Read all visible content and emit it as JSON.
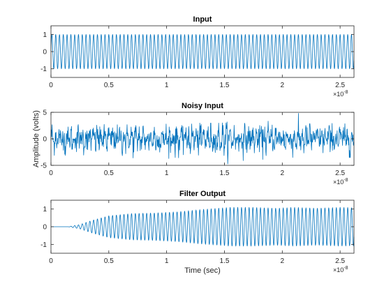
{
  "figure": {
    "ylabel": "Amplitude (volts)",
    "xlabel": "Time (sec)",
    "line_color": "#0072bd",
    "axis_color": "#262626",
    "exponent_label": "×10",
    "exponent_power": "-8"
  },
  "chart_data": [
    {
      "type": "line",
      "title": "Input",
      "xlabel": "",
      "ylabel": "",
      "xlim": [
        0,
        2.62e-08
      ],
      "ylim": [
        -1.5,
        1.5
      ],
      "x_ticks": [
        0,
        0.5,
        1,
        1.5,
        2,
        2.5
      ],
      "y_ticks": [
        -1,
        0,
        1
      ],
      "series": [
        {
          "kind": "sine",
          "amplitude": 1.0,
          "frequency_hz": 3050000000.0,
          "t_start": 0,
          "t_end": 2.62e-08
        }
      ]
    },
    {
      "type": "line",
      "title": "Noisy Input",
      "xlabel": "",
      "ylabel": "Amplitude (volts)",
      "xlim": [
        0,
        2.62e-08
      ],
      "ylim": [
        -5,
        5
      ],
      "x_ticks": [
        0,
        0.5,
        1,
        1.5,
        2,
        2.5
      ],
      "y_ticks": [
        -5,
        0,
        5
      ],
      "series": [
        {
          "kind": "noisy_sine",
          "amplitude": 1.0,
          "noise_std": 1.2,
          "frequency_hz": 3050000000.0,
          "t_start": 0,
          "t_end": 2.62e-08
        }
      ]
    },
    {
      "type": "line",
      "title": "Filter Output",
      "xlabel": "Time (sec)",
      "ylabel": "",
      "xlim": [
        0,
        2.62e-08
      ],
      "ylim": [
        -1.5,
        1.5
      ],
      "x_ticks": [
        0,
        0.5,
        1,
        1.5,
        2,
        2.5
      ],
      "y_ticks": [
        -1,
        0,
        1
      ],
      "series": [
        {
          "kind": "envelope_sine",
          "frequency_hz": 3050000000.0,
          "t_start": 0,
          "t_end": 2.62e-08,
          "envelope": [
            [
              0,
              0
            ],
            [
              1.5e-09,
              0.0
            ],
            [
              2.5e-09,
              0.12
            ],
            [
              3.5e-09,
              0.35
            ],
            [
              5e-09,
              0.62
            ],
            [
              7e-09,
              0.75
            ],
            [
              9e-09,
              0.78
            ],
            [
              1.1e-08,
              0.85
            ],
            [
              1.3e-08,
              0.98
            ],
            [
              1.55e-08,
              1.1
            ],
            [
              1.75e-08,
              1.1
            ],
            [
              1.95e-08,
              1.05
            ],
            [
              2.1e-08,
              1.1
            ],
            [
              2.3e-08,
              1.05
            ],
            [
              2.5e-08,
              1.1
            ],
            [
              2.62e-08,
              1.08
            ]
          ]
        }
      ]
    }
  ]
}
